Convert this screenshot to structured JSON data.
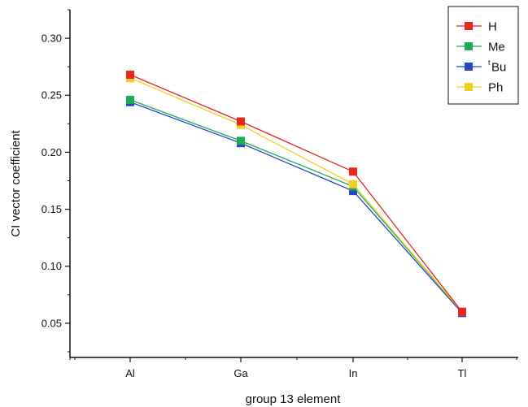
{
  "chart_data": {
    "type": "line",
    "categories": [
      "Al",
      "Ga",
      "In",
      "Tl"
    ],
    "xlabel": "group 13 element",
    "ylabel": "CI vector coefficient",
    "ylim": [
      0.02,
      0.325
    ],
    "yticks": [
      "0.05",
      "0.10",
      "0.15",
      "0.20",
      "0.25",
      "0.30"
    ],
    "legend_position": "top-right",
    "grid": false,
    "series": [
      {
        "name": "H",
        "color": "#e8261c",
        "values": [
          0.268,
          0.227,
          0.183,
          0.06
        ]
      },
      {
        "name": "Me",
        "color": "#1faa55",
        "values": [
          0.246,
          0.21,
          0.17,
          0.06
        ]
      },
      {
        "name_sup": "t",
        "name": "Bu",
        "color": "#2347c8",
        "values": [
          0.244,
          0.208,
          0.166,
          0.059
        ]
      },
      {
        "name": "Ph",
        "color": "#f2d022",
        "values": [
          0.265,
          0.224,
          0.172,
          0.06
        ]
      }
    ]
  }
}
